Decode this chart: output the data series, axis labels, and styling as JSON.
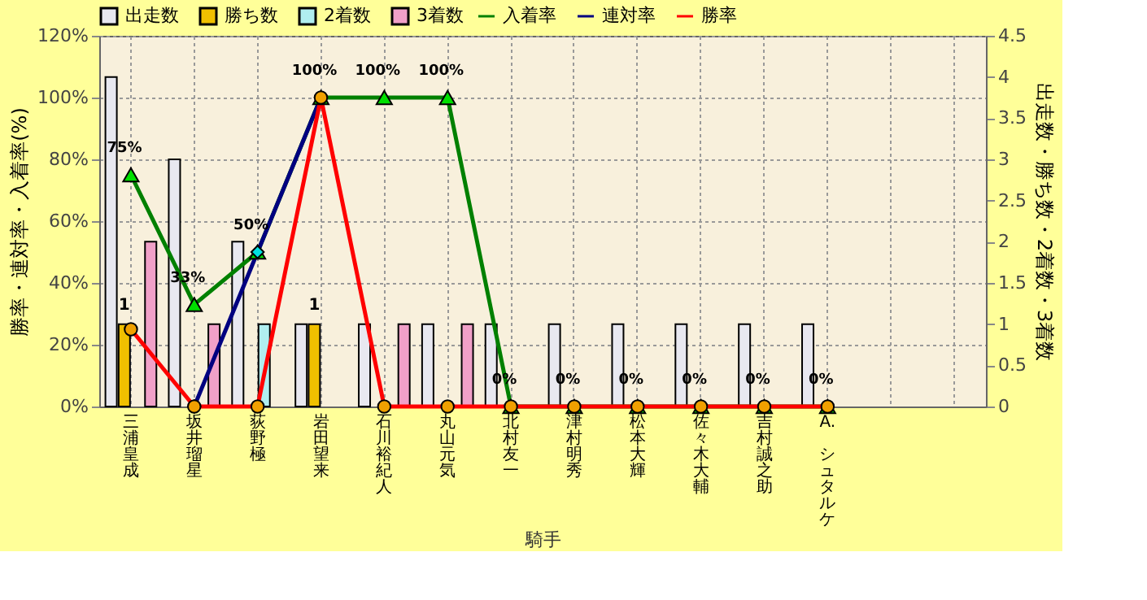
{
  "chart_data": {
    "type": "bar",
    "xlabel": "騎手",
    "ylabel": "勝率・連対率・入着率(%)",
    "y2label": "出走数・勝ち数・2着数・3着数",
    "categories": [
      "三浦皇成",
      "坂井瑠星",
      "荻野極",
      "岩田望来",
      "石川裕紀人",
      "丸山元気",
      "北村友一",
      "津村明秀",
      "松本大輝",
      "佐々木大輔",
      "吉村誠之助",
      "A. シュタルケ",
      null,
      null
    ],
    "series": [
      {
        "name": "出走数",
        "type": "bar",
        "axis": "y2",
        "color": "#e8e8f0",
        "values": [
          4,
          3,
          2,
          1,
          1,
          1,
          1,
          1,
          1,
          1,
          1,
          1,
          null,
          null
        ]
      },
      {
        "name": "勝ち数",
        "type": "bar",
        "axis": "y2",
        "color": "#f0c000",
        "values": [
          1,
          null,
          null,
          1,
          null,
          null,
          null,
          null,
          null,
          null,
          null,
          null,
          null,
          null
        ],
        "value_labels": [
          "1",
          null,
          null,
          "1",
          null,
          null,
          null,
          null,
          null,
          null,
          null,
          null,
          null,
          null
        ]
      },
      {
        "name": "2着数",
        "type": "bar",
        "axis": "y2",
        "color": "#b0eef0",
        "values": [
          null,
          null,
          1,
          null,
          null,
          null,
          null,
          null,
          null,
          null,
          null,
          null,
          null,
          null
        ]
      },
      {
        "name": "3着数",
        "type": "bar",
        "axis": "y2",
        "color": "#f0a0c8",
        "values": [
          2,
          1,
          null,
          null,
          1,
          1,
          null,
          null,
          null,
          null,
          null,
          null,
          null,
          null
        ]
      },
      {
        "name": "入着率",
        "type": "line",
        "color": "#008000",
        "marker": "triangle",
        "values": [
          75,
          33,
          50,
          100,
          100,
          100,
          0,
          0,
          0,
          0,
          0,
          0,
          null,
          null
        ],
        "value_labels": [
          "75%",
          "33%",
          "50%",
          "100%",
          "100%",
          "100%",
          "0%",
          "0%",
          "0%",
          "0%",
          "0%",
          "0%",
          null,
          null
        ]
      },
      {
        "name": "連対率",
        "type": "line",
        "color": "#000080",
        "marker": "diamond",
        "values": [
          null,
          0,
          50,
          100,
          null,
          null,
          null,
          null,
          null,
          null,
          null,
          null,
          null,
          null
        ]
      },
      {
        "name": "勝率",
        "type": "line",
        "color": "#ff0000",
        "marker": "circle",
        "values": [
          25,
          0,
          0,
          100,
          0,
          0,
          0,
          0,
          0,
          0,
          0,
          0,
          null,
          null
        ]
      }
    ],
    "ylim": [
      0,
      120
    ],
    "yticks": [
      {
        "value": 0,
        "label": "0%"
      },
      {
        "value": 20,
        "label": "20%"
      },
      {
        "value": 40,
        "label": "40%"
      },
      {
        "value": 60,
        "label": "60%"
      },
      {
        "value": 80,
        "label": "80%"
      },
      {
        "value": 100,
        "label": "100%"
      },
      {
        "value": 120,
        "label": "120%"
      }
    ],
    "y2lim": [
      0,
      4.5
    ],
    "y2ticks": [
      0,
      0.5,
      1,
      1.5,
      2,
      2.5,
      3,
      3.5,
      4,
      4.5
    ],
    "grid": true,
    "legend": "top"
  }
}
